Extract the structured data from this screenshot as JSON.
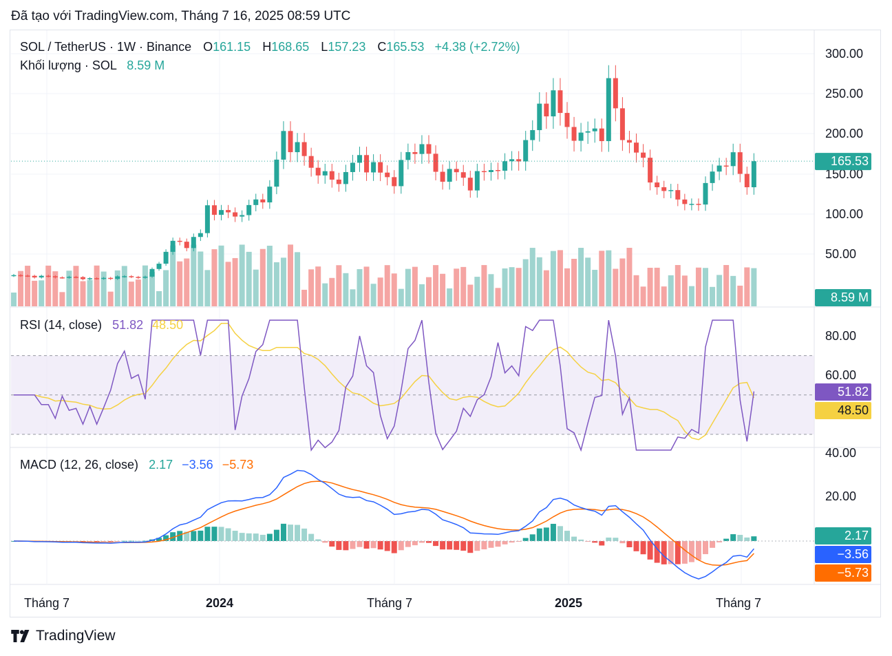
{
  "page": {
    "caption": "Đã tạo với TradingView.com, Tháng 7 16, 2025 08:59 UTC",
    "footer_brand": "TradingView"
  },
  "colors": {
    "up": "#26a69a",
    "down": "#ef5350",
    "up_light": "#9fd4cf",
    "down_light": "#f5a5a3",
    "rsi_line": "#7e57c2",
    "rsi_ma": "#f5d142",
    "macd_line": "#2962ff",
    "signal_line": "#ff6d00",
    "rsi_band": "#ede7f6",
    "grid": "#f0f3fa",
    "text": "#131722"
  },
  "legend": {
    "symbol": "SOL / TetherUS · 1W · Binance",
    "open_label": "O",
    "open": "161.15",
    "high_label": "H",
    "high": "168.65",
    "low_label": "L",
    "low": "157.23",
    "close_label": "C",
    "close": "165.53",
    "change": "+4.38 (+2.72%)",
    "volume_label": "Khối lượng · SOL",
    "volume_value": "8.59 M",
    "rsi_label": "RSI (14, close)",
    "rsi_value": "51.82",
    "rsi_ma_value": "48.50",
    "macd_label": "MACD (12, 26, close)",
    "macd_hist": "2.17",
    "macd_line": "−3.56",
    "macd_signal": "−5.73"
  },
  "chart_data": {
    "type": "candlestick",
    "interval": "1W",
    "x_tick_labels": [
      "Tháng 7",
      "2024",
      "Tháng 7",
      "2025",
      "Tháng 7"
    ],
    "price_axis": {
      "ticks": [
        "300.00",
        "250.00",
        "200.00",
        "150.00",
        "100.00",
        "50.00"
      ],
      "last_price_badge": "165.53",
      "volume_badge": "8.59 M"
    },
    "rsi_axis": {
      "ticks": [
        "80.00",
        "60.00",
        "40.00"
      ],
      "badges": [
        "51.82",
        "48.50"
      ],
      "bands": [
        30,
        70
      ]
    },
    "macd_axis": {
      "ticks": [
        "20.00"
      ],
      "badges": [
        "2.17",
        "−3.56",
        "−5.73"
      ]
    },
    "price_key_points": [
      {
        "x": "2023-07",
        "close": 22
      },
      {
        "x": "2023-10",
        "close": 30
      },
      {
        "x": "2023-12",
        "close": 100
      },
      {
        "x": "2024-03",
        "close": 200
      },
      {
        "x": "2024-07",
        "close": 160
      },
      {
        "x": "2024-11",
        "close": 250
      },
      {
        "x": "2025-01",
        "close": 295
      },
      {
        "x": "2025-04",
        "close": 110
      },
      {
        "x": "2025-07",
        "close": 165.53
      }
    ]
  }
}
